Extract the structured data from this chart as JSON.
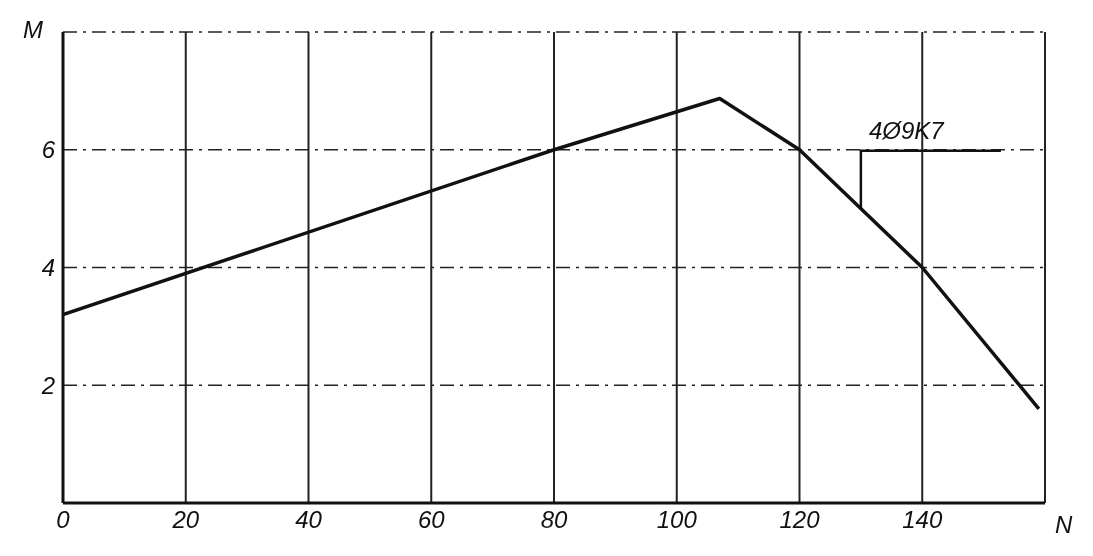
{
  "chart_data": {
    "type": "line",
    "xlabel": "N",
    "ylabel": "M",
    "x": [
      0,
      80,
      107,
      120,
      140,
      159
    ],
    "series": [
      {
        "color": "#111111",
        "values": [
          3.2,
          6,
          6.87,
          6,
          4,
          1.6
        ]
      }
    ],
    "xlim": [
      0,
      160
    ],
    "ylim": [
      0,
      8
    ],
    "xticks": [
      0,
      20,
      40,
      60,
      80,
      100,
      120,
      140
    ],
    "yticks": [
      2,
      4,
      6
    ],
    "grid": true,
    "marker": "none",
    "line_style": "solid",
    "annotations": [
      {
        "text": "4Ø9K7",
        "x": 130,
        "y": 5
      }
    ]
  }
}
